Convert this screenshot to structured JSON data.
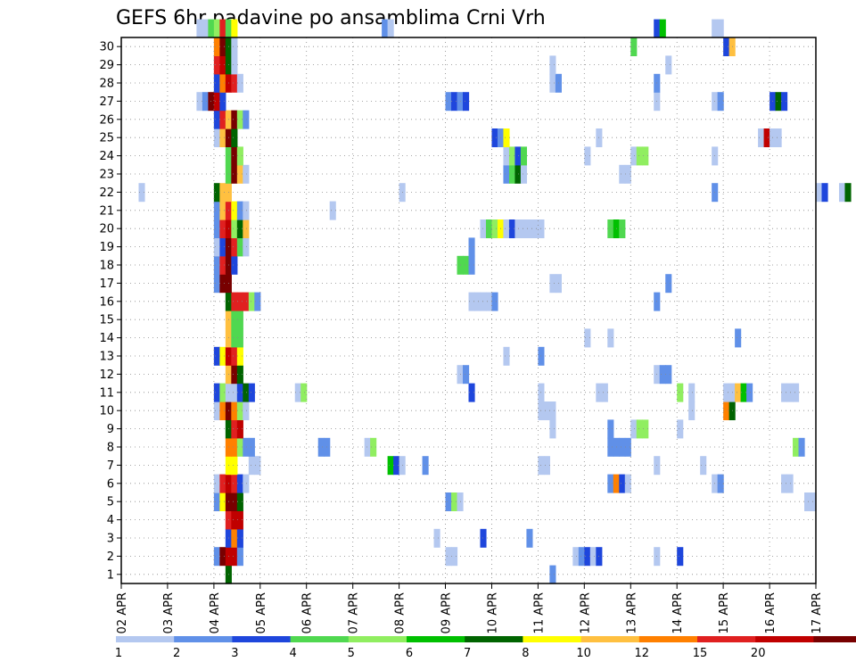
{
  "chart_data": {
    "type": "heatmap",
    "title": "GEFS 6hr padavine po ansamblima Crni Vrh",
    "xlabel": "",
    "ylabel": "",
    "x_ticks": [
      "02 APR",
      "03 APR",
      "04 APR",
      "05 APR",
      "06 APR",
      "07 APR",
      "08 APR",
      "09 APR",
      "10 APR",
      "11 APR",
      "12 APR",
      "13 APR",
      "14 APR",
      "15 APR",
      "16 APR",
      "17 APR"
    ],
    "y_ticks": [
      "1",
      "2",
      "3",
      "4",
      "5",
      "6",
      "7",
      "8",
      "9",
      "10",
      "11",
      "12",
      "13",
      "14",
      "15",
      "16",
      "17",
      "18",
      "19",
      "20",
      "21",
      "22",
      "23",
      "24",
      "25",
      "26",
      "27",
      "28",
      "29",
      "30"
    ],
    "xlim_days": [
      0,
      15
    ],
    "time_step_hours": 6,
    "ylim": [
      0,
      30
    ],
    "grid": true,
    "levels": {
      "labels": [
        "1",
        "2",
        "3",
        "4",
        "5",
        "6",
        "7",
        "8",
        "10",
        "12",
        "15",
        "20"
      ],
      "colors": [
        "#b4c8f0",
        "#6090e8",
        "#1e46dc",
        "#50d850",
        "#90ee60",
        "#00c000",
        "#006400",
        "#ffff00",
        "#ffc040",
        "#ff8000",
        "#e02020",
        "#c00000",
        "#780000"
      ]
    },
    "legend_position": "bottom",
    "cells_note": "each row: [start_step, color_index per 6h step] starting at given step (step 0 = 02 APR 00z)",
    "rows": {
      "30": [
        [
          13,
          0,
          0,
          3,
          4,
          10,
          3,
          7
        ],
        [
          45,
          1,
          0
        ],
        [
          92,
          2,
          5
        ],
        [
          102,
          0,
          0
        ]
      ],
      "29": [
        [
          16,
          9,
          12,
          6,
          0
        ],
        [
          88,
          3
        ],
        [
          104,
          2,
          8
        ],
        [
          129,
          0
        ]
      ],
      "28": [
        [
          16,
          10,
          11,
          6,
          0
        ],
        [
          74,
          0
        ],
        [
          94,
          0
        ],
        [
          136,
          1,
          9,
          8,
          2
        ]
      ],
      "27": [
        [
          16,
          2,
          9,
          11,
          10,
          0
        ],
        [
          74,
          0,
          1
        ],
        [
          92,
          1
        ],
        [
          140,
          6,
          3
        ]
      ],
      "26": [
        [
          13,
          0,
          1,
          12,
          11,
          2
        ],
        [
          56,
          1,
          2,
          1,
          2
        ],
        [
          92,
          0
        ],
        [
          102,
          0,
          1
        ],
        [
          112,
          2,
          6,
          2
        ]
      ],
      "25": [
        [
          16,
          2,
          10,
          8,
          12,
          4,
          1
        ]
      ],
      "24": [
        [
          16,
          0,
          8,
          12,
          6
        ],
        [
          64,
          2,
          1,
          7
        ],
        [
          82,
          0
        ],
        [
          110,
          0,
          11,
          0,
          0
        ]
      ],
      "23": [
        [
          18,
          3,
          12,
          4
        ],
        [
          66,
          0,
          4,
          2,
          3
        ],
        [
          80,
          0
        ],
        [
          88,
          0,
          4,
          4
        ],
        [
          102,
          0
        ]
      ],
      "22": [
        [
          18,
          3,
          12,
          8,
          0
        ],
        [
          66,
          1,
          3,
          6,
          0
        ],
        [
          86,
          0,
          0
        ]
      ],
      "21": [
        [
          3,
          0
        ],
        [
          16,
          6,
          8,
          8
        ],
        [
          48,
          0
        ],
        [
          102,
          1
        ],
        [
          120,
          0,
          2
        ],
        [
          124,
          0,
          6
        ],
        [
          132,
          0
        ]
      ],
      "20": [
        [
          16,
          1,
          8,
          10,
          7,
          1,
          0
        ],
        [
          36,
          0
        ]
      ],
      "19": [
        [
          16,
          1,
          10,
          11,
          4,
          6,
          8
        ],
        [
          62,
          0,
          3,
          4,
          7,
          0,
          2,
          0,
          0,
          0,
          0,
          0
        ],
        [
          84,
          3,
          5,
          3
        ]
      ],
      "18": [
        [
          16,
          0,
          2,
          12,
          10,
          3,
          0
        ],
        [
          60,
          1
        ]
      ],
      "17": [
        [
          16,
          1,
          10,
          12,
          2
        ],
        [
          58,
          3,
          3,
          1
        ]
      ],
      "16": [
        [
          16,
          1,
          12,
          12
        ],
        [
          74,
          0,
          0
        ],
        [
          94,
          1
        ]
      ],
      "15": [
        [
          18,
          6,
          10,
          10,
          10,
          4,
          1
        ],
        [
          60,
          0,
          0,
          0,
          0,
          1
        ],
        [
          92,
          1
        ],
        [
          144,
          6
        ]
      ],
      "14": [
        [
          18,
          8,
          3,
          3
        ]
      ],
      "13": [
        [
          18,
          8,
          3,
          3
        ],
        [
          80,
          0
        ],
        [
          84,
          0
        ],
        [
          106,
          1
        ],
        [
          140,
          1
        ]
      ],
      "12": [
        [
          16,
          2,
          7,
          11,
          10,
          7
        ],
        [
          66,
          0
        ],
        [
          72,
          1
        ]
      ],
      "11": [
        [
          18,
          8,
          12,
          6
        ],
        [
          58,
          0,
          1
        ],
        [
          92,
          0,
          1,
          1
        ],
        [
          134,
          0
        ]
      ],
      "10": [
        [
          16,
          2,
          4,
          0,
          0,
          2,
          6,
          2
        ],
        [
          30,
          0,
          4
        ],
        [
          60,
          2
        ],
        [
          72,
          0
        ],
        [
          82,
          0,
          0
        ],
        [
          96,
          4
        ],
        [
          98,
          0
        ],
        [
          104,
          0,
          0,
          8,
          5,
          1
        ],
        [
          114,
          0,
          0,
          0
        ],
        [
          144,
          2
        ]
      ],
      "9": [
        [
          16,
          0,
          9,
          12,
          9,
          4,
          0
        ],
        [
          72,
          0,
          0,
          0
        ],
        [
          98,
          0
        ],
        [
          104,
          9,
          6
        ],
        [
          140,
          0,
          2
        ]
      ],
      "8": [
        [
          18,
          6,
          10,
          11
        ],
        [
          74,
          0
        ],
        [
          84,
          1
        ],
        [
          88,
          0,
          4,
          4
        ],
        [
          96,
          0
        ]
      ],
      "7": [
        [
          18,
          9,
          9,
          4,
          1,
          1
        ],
        [
          34,
          1,
          1
        ],
        [
          42,
          0,
          4
        ],
        [
          84,
          1,
          1,
          1,
          1
        ],
        [
          116,
          4,
          1
        ]
      ],
      "6": [
        [
          18,
          7,
          7
        ],
        [
          22,
          0,
          0
        ],
        [
          46,
          5,
          2,
          0
        ],
        [
          52,
          1
        ],
        [
          72,
          0,
          0
        ],
        [
          92,
          0
        ],
        [
          100,
          0
        ]
      ],
      "5": [
        [
          16,
          0,
          10,
          11,
          10,
          2,
          0
        ],
        [
          84,
          1,
          9,
          2,
          0
        ],
        [
          102,
          0,
          1
        ],
        [
          114,
          0,
          0
        ]
      ],
      "4": [
        [
          16,
          1,
          7,
          12,
          12,
          6
        ],
        [
          56,
          1,
          4,
          0
        ],
        [
          118,
          0,
          0
        ]
      ],
      "3": [
        [
          18,
          10,
          11,
          11
        ],
        [
          142,
          1,
          1
        ]
      ],
      "2": [
        [
          18,
          2,
          9,
          2
        ],
        [
          54,
          0
        ],
        [
          62,
          2
        ],
        [
          70,
          1
        ],
        [
          140,
          2
        ]
      ],
      "1": [
        [
          16,
          1,
          12,
          11,
          11,
          1
        ],
        [
          56,
          0,
          0
        ],
        [
          78,
          0,
          1,
          2,
          0,
          2
        ],
        [
          92,
          0
        ],
        [
          96,
          2
        ]
      ],
      "0": [
        [
          18,
          6
        ],
        [
          74,
          1
        ]
      ]
    }
  }
}
